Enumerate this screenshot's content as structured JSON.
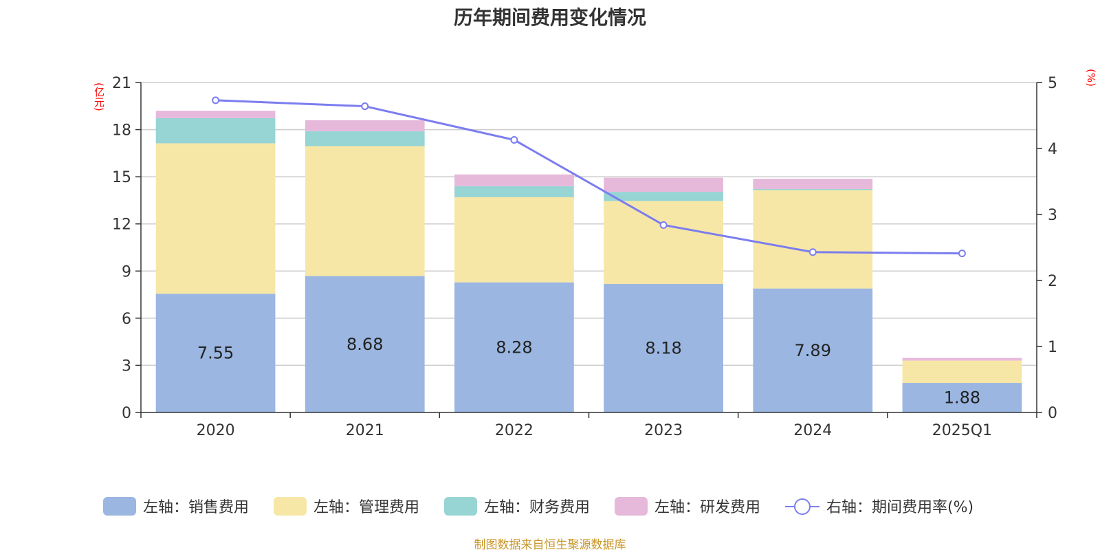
{
  "source_note": "制图数据来自恒生聚源数据库",
  "chart_data": {
    "type": "bar",
    "title": "历年期间费用变化情况",
    "y_left_unit": "(亿元)",
    "y_right_unit": "(%)",
    "categories": [
      "2020",
      "2021",
      "2022",
      "2023",
      "2024",
      "2025Q1"
    ],
    "ylim_left": [
      0,
      21
    ],
    "yticks_left": [
      "0",
      "3",
      "6",
      "9",
      "12",
      "15",
      "18",
      "21"
    ],
    "ylim_right": [
      0,
      5
    ],
    "yticks_right": [
      "0",
      "1",
      "2",
      "3",
      "4",
      "5"
    ],
    "grid": true,
    "legend_position": "bottom",
    "series": [
      {
        "name": "左轴：销售费用",
        "axis": "left",
        "kind": "bar",
        "color": "#9ab6e1",
        "values": [
          7.55,
          8.68,
          8.28,
          8.18,
          7.89,
          1.88
        ],
        "labels": [
          "7.55",
          "8.68",
          "8.28",
          "8.18",
          "7.89",
          "1.88"
        ]
      },
      {
        "name": "左轴：管理费用",
        "axis": "left",
        "kind": "bar",
        "color": "#f7e7a6",
        "values": [
          9.58,
          8.27,
          5.42,
          5.28,
          6.26,
          1.42
        ]
      },
      {
        "name": "左轴：财务费用",
        "axis": "left",
        "kind": "bar",
        "color": "#97d4d4",
        "values": [
          1.6,
          0.95,
          0.7,
          0.58,
          0.07,
          0.0
        ]
      },
      {
        "name": "左轴：研发费用",
        "axis": "left",
        "kind": "bar",
        "color": "#e6b9da",
        "values": [
          0.47,
          0.7,
          0.75,
          0.9,
          0.65,
          0.17
        ]
      },
      {
        "name": "右轴：期间费用率(%)",
        "axis": "right",
        "kind": "line",
        "color": "#7b7def",
        "values": [
          4.73,
          4.64,
          4.13,
          2.84,
          2.43,
          2.41
        ]
      }
    ]
  }
}
